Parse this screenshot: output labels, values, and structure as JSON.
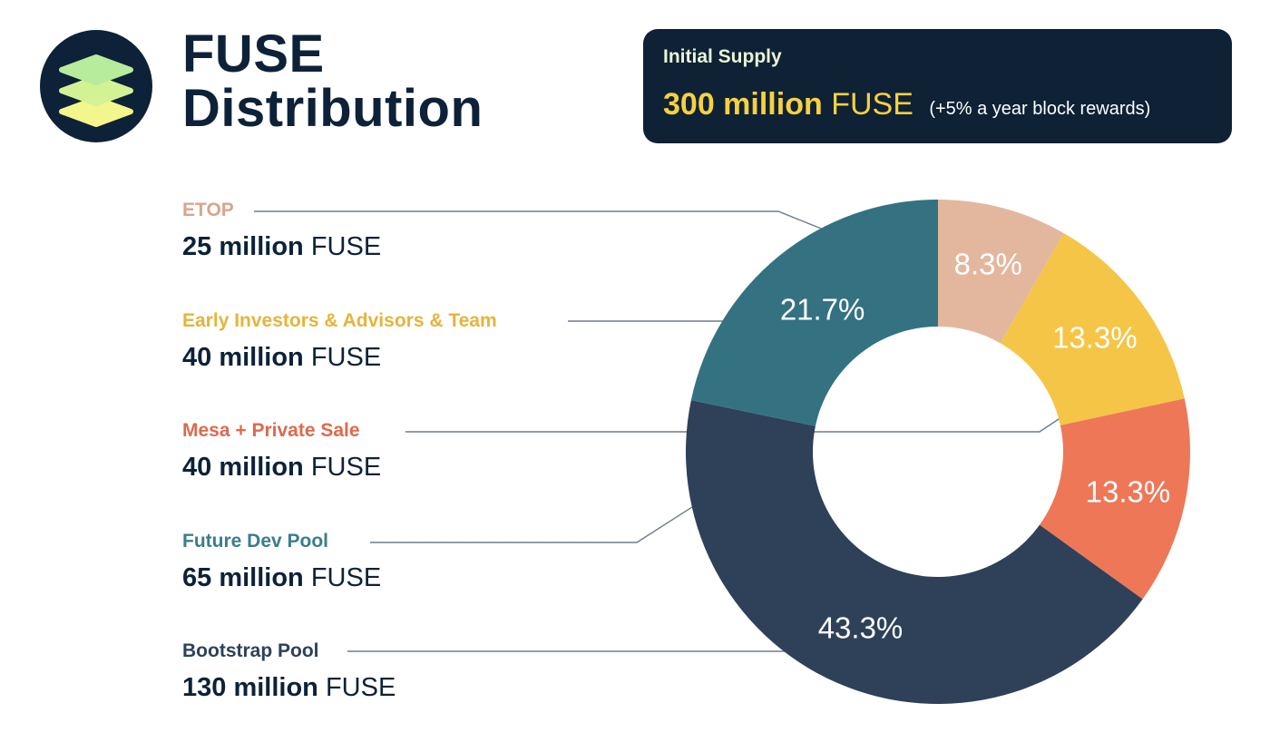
{
  "header": {
    "title_line1": "FUSE",
    "title_line2": "Distribution",
    "logo_icon": "stacked-layers-icon"
  },
  "supply": {
    "label": "Initial Supply",
    "amount": "300 million",
    "unit": "FUSE",
    "note": "(+5% a year block rewards)"
  },
  "legend": [
    {
      "name": "ETOP",
      "amount": "25 million",
      "unit": "FUSE",
      "color": "#d9a58b"
    },
    {
      "name": "Early Investors & Advisors & Team",
      "amount": "40 million",
      "unit": "FUSE",
      "color": "#e5b43c"
    },
    {
      "name": "Mesa + Private Sale",
      "amount": "40 million",
      "unit": "FUSE",
      "color": "#dd6a4e"
    },
    {
      "name": "Future Dev Pool",
      "amount": "65 million",
      "unit": "FUSE",
      "color": "#3b7d8c"
    },
    {
      "name": "Bootstrap Pool",
      "amount": "130 million",
      "unit": "FUSE",
      "color": "#2d4159"
    }
  ],
  "chart_data": {
    "type": "pie",
    "donut": true,
    "categories": [
      "ETOP",
      "Early Investors & Advisors & Team",
      "Mesa + Private Sale",
      "Bootstrap Pool",
      "Future Dev Pool"
    ],
    "values": [
      8.3,
      13.3,
      13.3,
      43.3,
      21.7
    ],
    "labels": [
      "8.3%",
      "13.3%",
      "13.3%",
      "43.3%",
      "21.7%"
    ],
    "colors": [
      "#e3b79e",
      "#f5c547",
      "#ee7757",
      "#2e4159",
      "#347282"
    ]
  }
}
